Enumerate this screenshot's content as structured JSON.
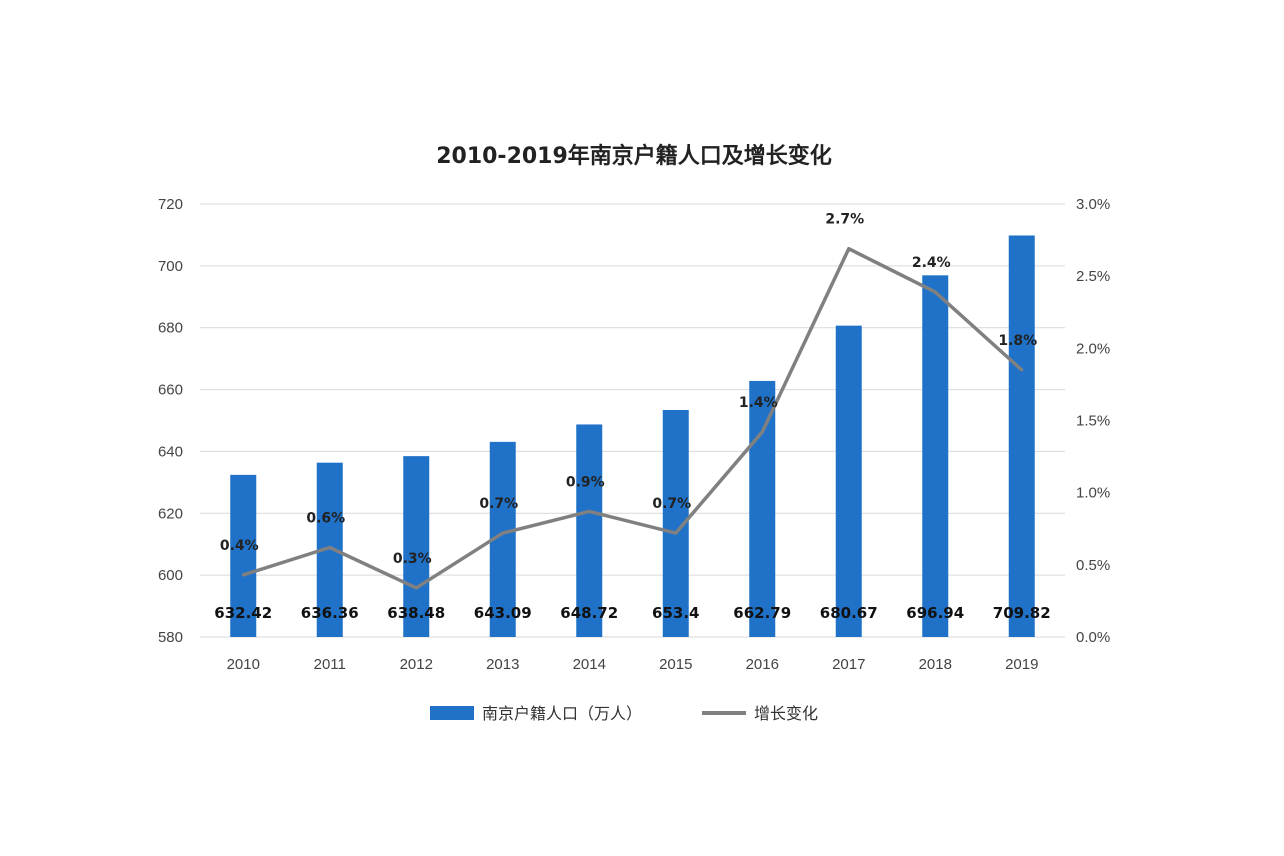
{
  "chart_data": {
    "type": "bar",
    "title": "2010-2019年南京户籍人口及增长变化",
    "categories": [
      "2010",
      "2011",
      "2012",
      "2013",
      "2014",
      "2015",
      "2016",
      "2017",
      "2018",
      "2019"
    ],
    "series": [
      {
        "name": "南京户籍人口（万人）",
        "type": "bar",
        "axis": "left",
        "color": "#1f72c8",
        "values": [
          632.42,
          636.36,
          638.48,
          643.09,
          648.72,
          653.4,
          662.79,
          680.67,
          696.94,
          709.82
        ],
        "labels": [
          "632.42",
          "636.36",
          "638.48",
          "643.09",
          "648.72",
          "653.4",
          "662.79",
          "680.67",
          "696.94",
          "709.82"
        ]
      },
      {
        "name": "增长变化",
        "type": "line",
        "axis": "right",
        "color": "#808080",
        "values": [
          0.43,
          0.62,
          0.34,
          0.72,
          0.87,
          0.72,
          1.42,
          2.69,
          2.39,
          1.85
        ],
        "labels": [
          "0.4%",
          "0.6%",
          "0.3%",
          "0.7%",
          "0.9%",
          "0.7%",
          "1.4%",
          "2.7%",
          "2.4%",
          "1.8%"
        ]
      }
    ],
    "y_left": {
      "min": 580,
      "max": 720,
      "step": 20,
      "ticks": [
        "580",
        "600",
        "620",
        "640",
        "660",
        "680",
        "700",
        "720"
      ]
    },
    "y_right": {
      "min": 0,
      "max": 3,
      "step": 0.5,
      "ticks": [
        "0.0%",
        "0.5%",
        "1.0%",
        "1.5%",
        "2.0%",
        "2.5%",
        "3.0%"
      ]
    },
    "grid": true,
    "legend": "bottom"
  }
}
